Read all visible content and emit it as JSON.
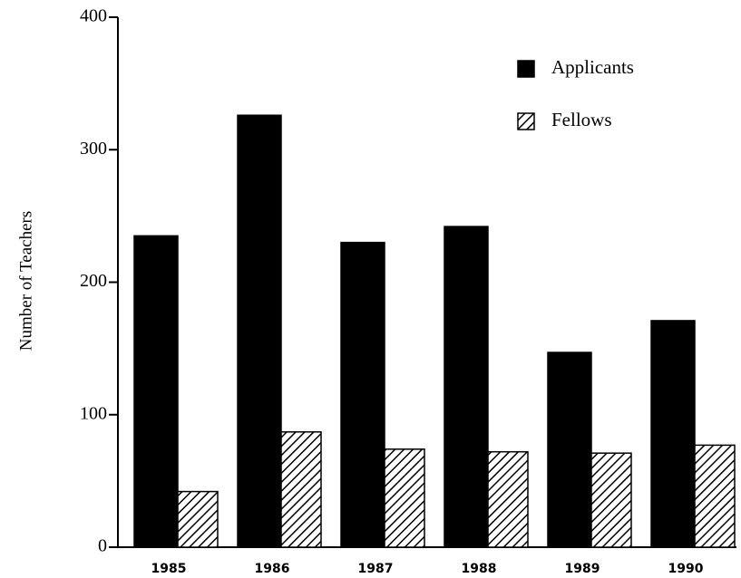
{
  "chart_data": {
    "type": "bar",
    "y_label": "Number of Teachers",
    "categories": [
      "1985",
      "1986",
      "1987",
      "1988",
      "1989",
      "1990"
    ],
    "series": [
      {
        "name": "Applicants",
        "color": "#000000",
        "pattern": "solid",
        "values": [
          235,
          326,
          230,
          242,
          147,
          171
        ]
      },
      {
        "name": "Fellows",
        "color": "#000000",
        "pattern": "hatch",
        "values": [
          42,
          87,
          74,
          72,
          71,
          77
        ]
      }
    ],
    "ylim": [
      0,
      400
    ],
    "yticks": [
      0,
      100,
      200,
      300,
      400
    ],
    "grid": false,
    "legend": "upper right"
  }
}
